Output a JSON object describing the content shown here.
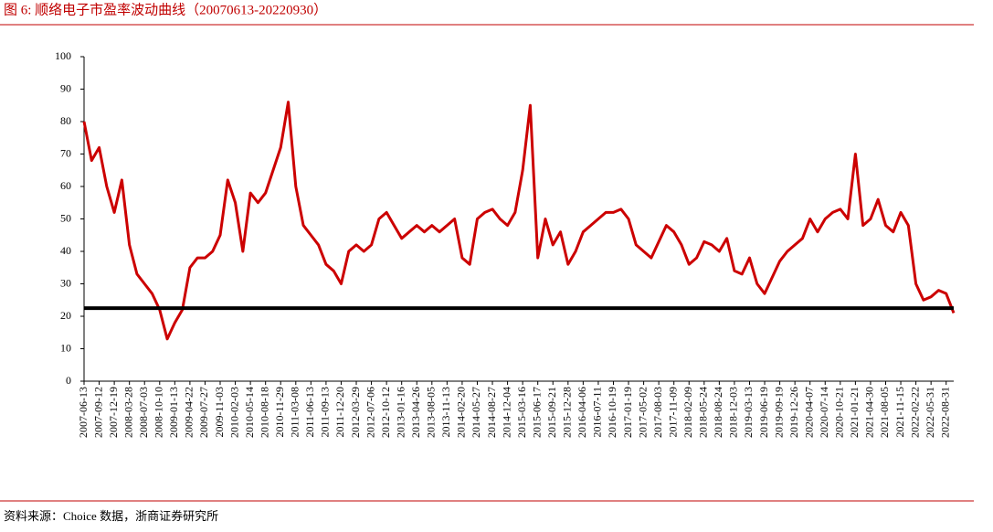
{
  "chart_data": {
    "type": "line",
    "title": "图 6:   顺络电子市盈率波动曲线（20070613-20220930）",
    "source": "资料来源：Choice 数据，浙商证券研究所",
    "categories": [
      "2007-06-13",
      null,
      "2007-09-12",
      null,
      "2007-12-19",
      null,
      "2008-03-28",
      null,
      "2008-07-03",
      null,
      "2008-10-10",
      null,
      "2009-01-13",
      null,
      "2009-04-22",
      null,
      "2009-07-27",
      null,
      "2009-11-03",
      null,
      "2010-02-03",
      null,
      "2010-05-14",
      null,
      "2010-08-18",
      null,
      "2010-11-29",
      null,
      "2011-03-08",
      null,
      "2011-06-13",
      null,
      "2011-09-13",
      null,
      "2011-12-20",
      null,
      "2012-03-29",
      null,
      "2012-07-06",
      null,
      "2012-10-12",
      null,
      "2013-01-16",
      null,
      "2013-04-26",
      null,
      "2013-08-05",
      null,
      "2013-11-13",
      null,
      "2014-02-20",
      null,
      "2014-05-27",
      null,
      "2014-08-27",
      null,
      "2014-12-04",
      null,
      "2015-03-16",
      null,
      "2015-06-17",
      null,
      "2015-09-21",
      null,
      "2015-12-28",
      null,
      "2016-04-06",
      null,
      "2016-07-11",
      null,
      "2016-10-19",
      null,
      "2017-01-19",
      null,
      "2017-05-02",
      null,
      "2017-08-03",
      null,
      "2017-11-09",
      null,
      "2018-02-09",
      null,
      "2018-05-24",
      null,
      "2018-08-24",
      null,
      "2018-12-03",
      null,
      "2019-03-13",
      null,
      "2019-06-19",
      null,
      "2019-09-19",
      null,
      "2019-12-26",
      null,
      "2020-04-07",
      null,
      "2020-07-14",
      null,
      "2020-10-21",
      null,
      "2021-01-21",
      null,
      "2021-04-30",
      null,
      "2021-08-05",
      null,
      "2021-11-15",
      null,
      "2022-02-22",
      null,
      "2022-05-31",
      null,
      "2022-08-31",
      null
    ],
    "values": [
      80,
      68,
      72,
      60,
      52,
      62,
      42,
      33,
      30,
      27,
      22,
      13,
      18,
      22,
      35,
      38,
      38,
      40,
      45,
      62,
      55,
      40,
      58,
      55,
      58,
      65,
      72,
      86,
      60,
      48,
      45,
      42,
      36,
      34,
      30,
      40,
      42,
      40,
      42,
      50,
      52,
      48,
      44,
      46,
      48,
      46,
      48,
      46,
      48,
      50,
      38,
      36,
      50,
      52,
      53,
      50,
      48,
      52,
      65,
      85,
      38,
      50,
      42,
      46,
      36,
      40,
      46,
      48,
      50,
      52,
      52,
      53,
      50,
      42,
      40,
      38,
      43,
      48,
      46,
      42,
      36,
      38,
      43,
      42,
      40,
      44,
      34,
      33,
      38,
      30,
      27,
      32,
      37,
      40,
      42,
      44,
      50,
      46,
      50,
      52,
      53,
      50,
      70,
      48,
      50,
      56,
      48,
      46,
      52,
      48,
      30,
      25,
      26,
      28,
      27,
      21
    ],
    "color": "#cc0000",
    "reference_line": {
      "value": 22.5,
      "color": "#000000"
    },
    "ylim": [
      0,
      100
    ],
    "yticks": [
      0,
      10,
      20,
      30,
      40,
      50,
      60,
      70,
      80,
      90,
      100
    ],
    "grid": false
  }
}
